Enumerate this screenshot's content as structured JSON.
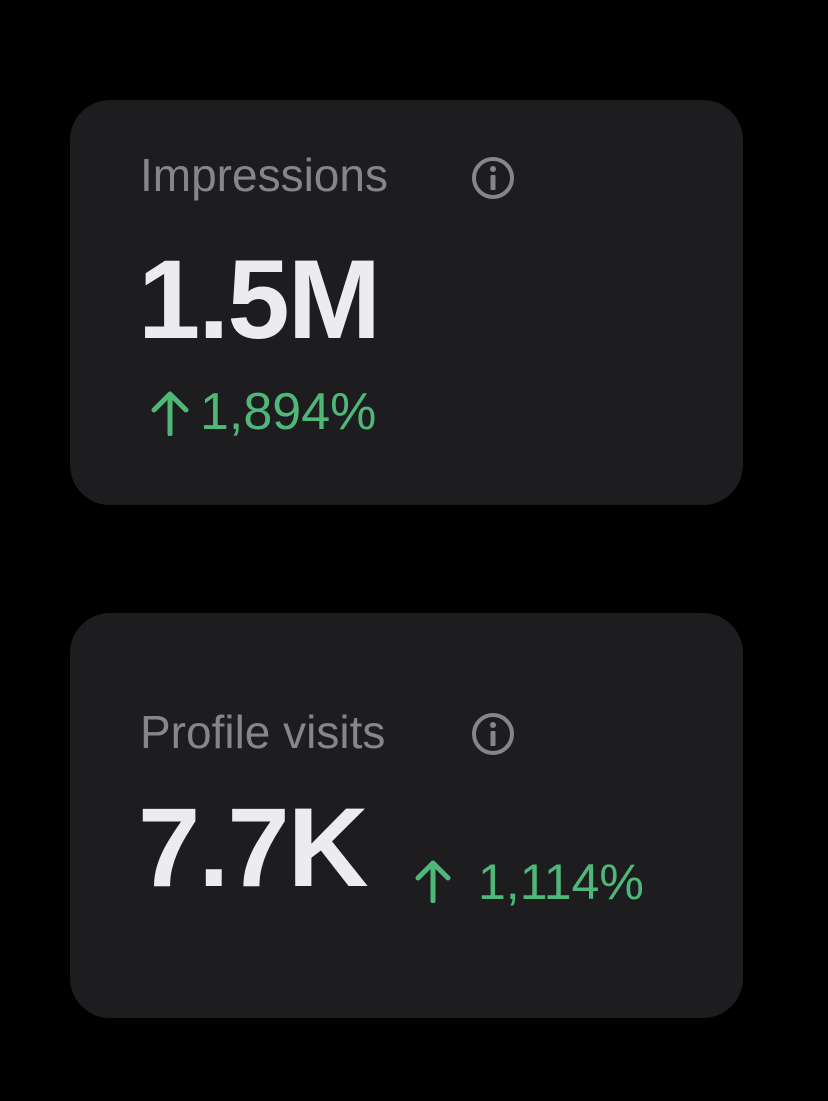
{
  "cards": [
    {
      "label": "Impressions",
      "value": "1.5M",
      "change": "1,894%"
    },
    {
      "label": "Profile visits",
      "value": "7.7K",
      "change": "1,114%"
    }
  ]
}
